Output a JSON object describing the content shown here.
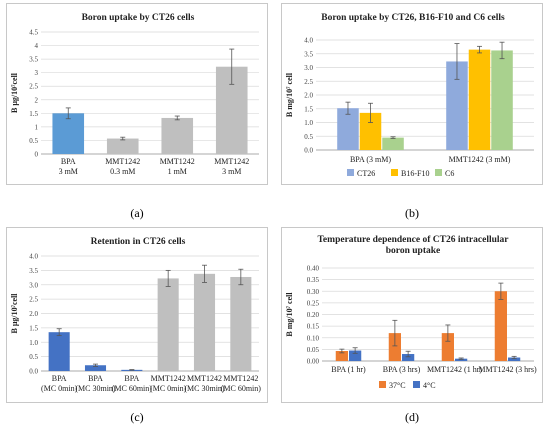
{
  "captions": {
    "a": "(a)",
    "b": "(b)",
    "c": "(c)",
    "d": "(d)"
  },
  "chart_data": [
    {
      "id": "a",
      "type": "bar",
      "title": [
        "Boron uptake by CT26 cells"
      ],
      "ylabel": "B μg/10⁷cell",
      "ylim": [
        0,
        4.5
      ],
      "yticks": [
        "0",
        "0.5",
        "1",
        "1.5",
        "2",
        "2.5",
        "3",
        "3.5",
        "4",
        "4.5"
      ],
      "ytick_values": [
        0,
        0.5,
        1,
        1.5,
        2,
        2.5,
        3,
        3.5,
        4,
        4.5
      ],
      "grid": true,
      "categories": [
        [
          "BPA",
          "3 mM"
        ],
        [
          "MMT1242",
          "0.3 mM"
        ],
        [
          "MMT1242",
          "1 mM"
        ],
        [
          "MMT1242",
          "3 mM"
        ]
      ],
      "values": [
        1.5,
        0.57,
        1.33,
        3.22
      ],
      "errors": [
        0.2,
        0.05,
        0.07,
        0.65
      ],
      "colors": [
        "#5b9bd5",
        "#bfbfbf",
        "#bfbfbf",
        "#bfbfbf"
      ]
    },
    {
      "id": "b",
      "type": "bar",
      "title": [
        "Boron uptake by CT26, B16-F10 and C6 cells"
      ],
      "ylabel": "B mg/10⁷ cell",
      "ylim": [
        0,
        4.0
      ],
      "yticks": [
        "0.0",
        "0.5",
        "1.0",
        "1.5",
        "2.0",
        "2.5",
        "3.0",
        "3.5",
        "4.0"
      ],
      "ytick_values": [
        0,
        0.5,
        1,
        1.5,
        2,
        2.5,
        3,
        3.5,
        4
      ],
      "grid": true,
      "categories": [
        [
          "BPA (3 mM)"
        ],
        [
          "MMT1242 (3 mM)"
        ]
      ],
      "series": [
        {
          "name": "CT26",
          "color": "#8faadc",
          "values": [
            1.52,
            3.22
          ],
          "errors": [
            0.22,
            0.65
          ]
        },
        {
          "name": "B16-F10",
          "color": "#ffc000",
          "values": [
            1.35,
            3.65
          ],
          "errors": [
            0.35,
            0.12
          ]
        },
        {
          "name": "C6",
          "color": "#a9d18e",
          "values": [
            0.45,
            3.62
          ],
          "errors": [
            0.03,
            0.3
          ]
        }
      ],
      "legend": "bottom"
    },
    {
      "id": "c",
      "type": "bar",
      "title": [
        "Retention in CT26 cells"
      ],
      "ylabel": "B μg/10⁷cell",
      "ylim": [
        0,
        4.0
      ],
      "yticks": [
        "0.0",
        "0.5",
        "1.0",
        "1.5",
        "2.0",
        "2.5",
        "3.0",
        "3.5",
        "4.0"
      ],
      "ytick_values": [
        0,
        0.5,
        1,
        1.5,
        2,
        2.5,
        3,
        3.5,
        4
      ],
      "grid": true,
      "categories": [
        [
          "BPA",
          "(MC 0min)"
        ],
        [
          "BPA",
          "(MC 30min)"
        ],
        [
          "BPA",
          "(MC 60min)"
        ],
        [
          "MMT1242",
          "(MC 0min)"
        ],
        [
          "MMT1242",
          "(MC 30min)"
        ],
        [
          "MMT1242",
          "(MC 60min)"
        ]
      ],
      "values": [
        1.35,
        0.2,
        0.04,
        3.22,
        3.38,
        3.27
      ],
      "errors": [
        0.12,
        0.04,
        0.01,
        0.28,
        0.3,
        0.27
      ],
      "colors": [
        "#4472c4",
        "#4472c4",
        "#4472c4",
        "#bfbfbf",
        "#bfbfbf",
        "#bfbfbf"
      ]
    },
    {
      "id": "d",
      "type": "bar",
      "title": [
        "Temperature dependence of CT26 intracellular",
        "boron uptake"
      ],
      "ylabel": "B mg/10⁷ cell",
      "ylim": [
        0,
        0.4
      ],
      "yticks": [
        "0.00",
        "0.05",
        "0.10",
        "0.15",
        "0.20",
        "0.25",
        "0.30",
        "0.35",
        "0.40"
      ],
      "ytick_values": [
        0,
        0.05,
        0.1,
        0.15,
        0.2,
        0.25,
        0.3,
        0.35,
        0.4
      ],
      "grid": true,
      "categories": [
        [
          "BPA (1 hr)"
        ],
        [
          "BPA (3 hrs)"
        ],
        [
          "MMT1242 (1 hr)"
        ],
        [
          "MMT1242 (3 hrs)"
        ]
      ],
      "series": [
        {
          "name": "37°C",
          "color": "#ed7d31",
          "values": [
            0.043,
            0.12,
            0.12,
            0.3
          ],
          "errors": [
            0.008,
            0.055,
            0.035,
            0.035
          ]
        },
        {
          "name": "4°C",
          "color": "#4472c4",
          "values": [
            0.045,
            0.03,
            0.01,
            0.015
          ],
          "errors": [
            0.012,
            0.012,
            0.003,
            0.005
          ]
        }
      ],
      "legend": "bottom"
    }
  ]
}
